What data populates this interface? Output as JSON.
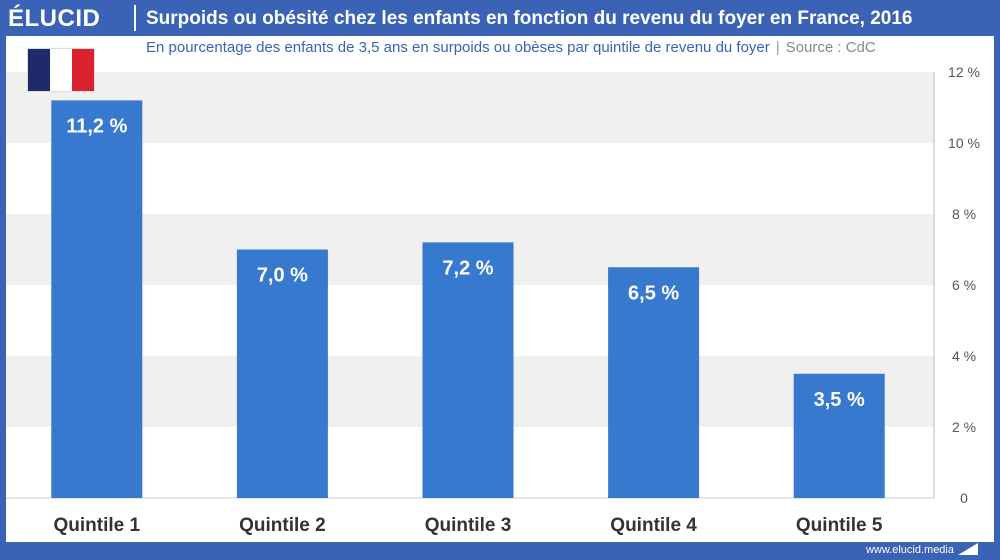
{
  "header": {
    "logo": "ÉLUCID",
    "title": "Surpoids ou obésité chez les enfants en fonction du revenu du foyer en France, 2016"
  },
  "subtitle": {
    "text": "En pourcentage des enfants de 3,5 ans en surpoids ou obèses par quintile de revenu du foyer",
    "separator": "|",
    "source": "Source : CdC"
  },
  "flag": {
    "colors": [
      "#1f2a6b",
      "#ffffff",
      "#d9232e"
    ]
  },
  "footer": {
    "url": "www.elucid.media"
  },
  "colors": {
    "bar": "#3679cf",
    "band": "#f0f0f0",
    "brand": "#3a62b5"
  },
  "chart_data": {
    "type": "bar",
    "title": "Surpoids ou obésité chez les enfants en fonction du revenu du foyer en France, 2016",
    "xlabel": "",
    "ylabel": "",
    "ylim": [
      0,
      12
    ],
    "categories": [
      "Quintile 1",
      "Quintile 2",
      "Quintile 3",
      "Quintile 4",
      "Quintile 5"
    ],
    "values": [
      11.2,
      7.0,
      7.2,
      6.5,
      3.5
    ],
    "data_labels": [
      "11,2 %",
      "7,0 %",
      "7,2 %",
      "6,5 %",
      "3,5 %"
    ],
    "y_ticks": [
      0,
      2,
      4,
      6,
      8,
      10,
      12
    ],
    "y_tick_labels": [
      "0",
      "2 %",
      "4 %",
      "6 %",
      "8 %",
      "10 %",
      "12 %"
    ],
    "axis_position": "right"
  }
}
